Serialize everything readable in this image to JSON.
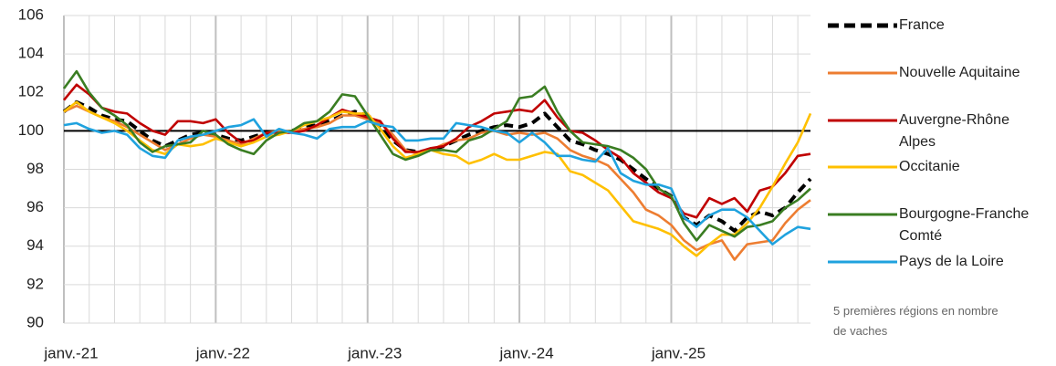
{
  "chart_data": {
    "type": "line",
    "categories": [
      "janv.-21",
      null,
      null,
      null,
      null,
      null,
      null,
      null,
      null,
      null,
      null,
      null,
      "janv.-22",
      null,
      null,
      null,
      null,
      null,
      null,
      null,
      null,
      null,
      null,
      null,
      "janv.-23",
      null,
      null,
      null,
      null,
      null,
      null,
      null,
      null,
      null,
      null,
      null,
      "janv.-24",
      null,
      null,
      null,
      null,
      null,
      null,
      null,
      null,
      null,
      null,
      null,
      "janv.-25",
      null,
      null,
      null,
      null,
      null,
      null,
      null,
      null,
      null,
      null,
      null
    ],
    "series": [
      {
        "name": "France",
        "color": "#000000",
        "dashed": true,
        "values": [
          101.0,
          101.5,
          101.2,
          100.8,
          100.6,
          100.5,
          100.0,
          99.5,
          99.2,
          99.5,
          99.8,
          99.9,
          99.8,
          99.6,
          99.5,
          99.7,
          99.9,
          99.9,
          100.0,
          100.2,
          100.3,
          100.5,
          100.8,
          101.0,
          100.8,
          100.3,
          99.5,
          99.0,
          98.9,
          99.0,
          99.2,
          99.5,
          99.8,
          100.0,
          100.2,
          100.3,
          100.2,
          100.4,
          100.9,
          100.2,
          99.5,
          99.3,
          99.0,
          98.8,
          98.5,
          98.0,
          97.5,
          97.0,
          96.6,
          95.5,
          95.1,
          95.6,
          95.3,
          94.8,
          95.5,
          95.8,
          95.6,
          96.0,
          96.8,
          97.5
        ]
      },
      {
        "name": "Nouvelle Aquitaine",
        "color": "#ed7d31",
        "values": [
          101.0,
          101.3,
          101.0,
          100.7,
          100.5,
          100.2,
          99.8,
          99.4,
          99.0,
          99.3,
          99.6,
          99.8,
          99.7,
          99.5,
          99.3,
          99.6,
          99.9,
          100.0,
          100.0,
          100.1,
          100.2,
          100.4,
          100.8,
          100.8,
          100.6,
          100.4,
          99.8,
          99.0,
          98.8,
          99.0,
          99.3,
          99.5,
          99.6,
          99.9,
          100.0,
          99.8,
          99.9,
          99.8,
          99.9,
          99.6,
          99.0,
          98.7,
          98.5,
          98.2,
          97.5,
          96.8,
          95.9,
          95.6,
          95.1,
          94.3,
          93.8,
          94.1,
          94.3,
          93.3,
          94.1,
          94.2,
          94.3,
          95.2,
          95.9,
          96.4
        ]
      },
      {
        "name": "Auvergne-Rhône Alpes",
        "color": "#c00000",
        "values": [
          101.6,
          102.4,
          101.9,
          101.2,
          101.0,
          100.9,
          100.4,
          100.0,
          99.8,
          100.5,
          100.5,
          100.4,
          100.6,
          99.9,
          99.4,
          99.5,
          99.9,
          99.9,
          99.9,
          100.0,
          100.3,
          100.7,
          101.1,
          100.9,
          100.7,
          100.5,
          99.6,
          98.9,
          98.9,
          99.1,
          99.2,
          99.6,
          100.2,
          100.5,
          100.9,
          101.0,
          101.1,
          101.0,
          101.6,
          100.7,
          100.0,
          99.9,
          99.5,
          99.0,
          98.6,
          97.8,
          97.3,
          96.8,
          96.5,
          95.7,
          95.5,
          96.5,
          96.2,
          96.5,
          95.8,
          96.9,
          97.1,
          97.8,
          98.7,
          98.8
        ]
      },
      {
        "name": "Occitanie",
        "color": "#ffc000",
        "values": [
          101.0,
          101.5,
          101.0,
          100.7,
          100.4,
          100.0,
          99.5,
          99.0,
          98.8,
          99.3,
          99.2,
          99.3,
          99.6,
          99.4,
          99.2,
          99.4,
          99.7,
          99.8,
          100.0,
          100.3,
          100.5,
          100.7,
          101.0,
          100.9,
          100.9,
          100.1,
          99.2,
          98.6,
          98.8,
          99.0,
          98.8,
          98.7,
          98.3,
          98.5,
          98.8,
          98.5,
          98.5,
          98.7,
          98.9,
          98.8,
          97.9,
          97.7,
          97.3,
          96.9,
          96.1,
          95.3,
          95.1,
          94.9,
          94.6,
          94.0,
          93.5,
          94.1,
          94.6,
          94.6,
          95.2,
          96.0,
          97.1,
          98.3,
          99.4,
          100.9
        ]
      },
      {
        "name": "Bourgogne-Franche Comté",
        "color": "#3a7d22",
        "values": [
          102.2,
          103.1,
          102.0,
          101.2,
          100.8,
          100.3,
          99.4,
          98.9,
          99.2,
          99.3,
          99.4,
          100.0,
          99.8,
          99.3,
          99.0,
          98.8,
          99.5,
          99.9,
          100.0,
          100.4,
          100.5,
          101.0,
          101.9,
          101.8,
          100.8,
          99.8,
          98.8,
          98.5,
          98.7,
          99.0,
          99.0,
          98.9,
          99.5,
          99.7,
          100.1,
          100.5,
          101.7,
          101.8,
          102.3,
          101.0,
          100.0,
          99.4,
          99.3,
          99.2,
          99.0,
          98.6,
          98.0,
          97.0,
          96.6,
          95.2,
          94.3,
          95.1,
          94.8,
          94.5,
          95.0,
          95.1,
          95.3,
          96.0,
          96.4,
          97.0
        ]
      },
      {
        "name": "Pays de la Loire",
        "color": "#1fa2de",
        "values": [
          100.3,
          100.4,
          100.1,
          99.9,
          100.0,
          99.8,
          99.1,
          98.7,
          98.6,
          99.5,
          99.7,
          99.8,
          100.0,
          100.2,
          100.3,
          100.6,
          99.7,
          100.1,
          99.9,
          99.8,
          99.6,
          100.1,
          100.2,
          100.2,
          100.5,
          100.3,
          100.2,
          99.5,
          99.5,
          99.6,
          99.6,
          100.4,
          100.3,
          100.2,
          100.0,
          99.9,
          99.4,
          99.9,
          99.4,
          98.7,
          98.7,
          98.5,
          98.4,
          99.1,
          97.8,
          97.4,
          97.2,
          97.2,
          97.0,
          95.5,
          95.0,
          95.6,
          95.9,
          95.9,
          95.5,
          94.8,
          94.1,
          94.6,
          95.0,
          94.9
        ]
      }
    ],
    "ylim": [
      90,
      106
    ],
    "yticks": [
      90,
      92,
      94,
      96,
      98,
      100,
      102,
      104,
      106
    ],
    "reference_line": 100,
    "grid": true,
    "annotation": "5 premières régions en nombre de vaches"
  }
}
